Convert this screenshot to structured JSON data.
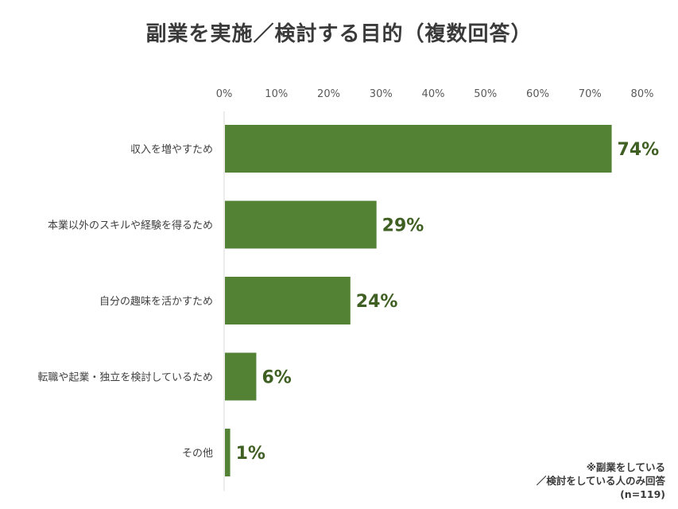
{
  "chart_data": {
    "type": "bar",
    "orientation": "horizontal",
    "title": "副業を実施／検討する目的（複数回答）",
    "categories": [
      "収入を増やすため",
      "本業以外のスキルや経験を得るため",
      "自分の趣味を活かすため",
      "転職や起業・独立を検討しているため",
      "その他"
    ],
    "values": [
      74,
      29,
      24,
      6,
      1
    ],
    "data_labels": [
      "74%",
      "29%",
      "24%",
      "6%",
      "1%"
    ],
    "xlim": [
      0,
      80
    ],
    "x_ticks": [
      "0%",
      "10%",
      "20%",
      "30%",
      "40%",
      "50%",
      "60%",
      "70%",
      "80%"
    ],
    "x_axis_position": "top",
    "grid": false,
    "legend": "none",
    "bar_color": "#548235",
    "label_color": "#3f5f23"
  },
  "note": {
    "line1": "※副業をしている",
    "line2": "／検討をしている人のみ回答",
    "line3": "(n=119)"
  }
}
